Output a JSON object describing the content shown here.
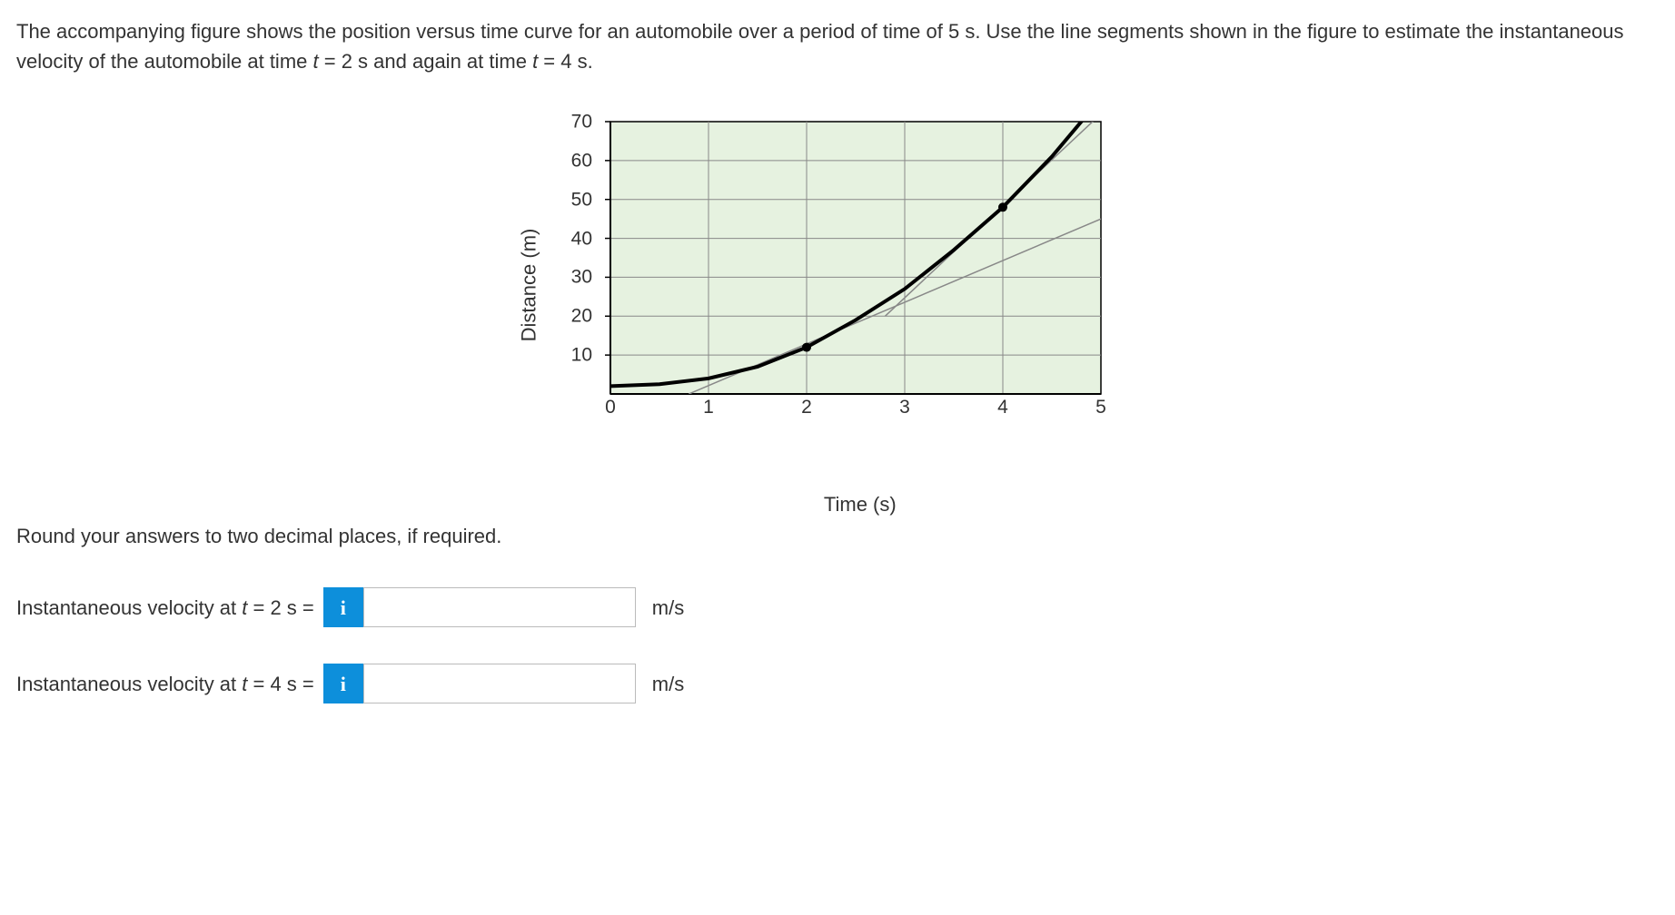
{
  "question": {
    "pre": "The accompanying figure shows the position versus time curve for an automobile over a period of time of 5 s. Use the line segments shown in the figure to estimate the instantaneous velocity of the automobile at time ",
    "t1_var": "t",
    "t1_eq": " = 2 s and again at time ",
    "t2_var": "t",
    "t2_eq": " = 4 s."
  },
  "chart": {
    "xlabel": "Time (s)",
    "ylabel": "Distance (m)",
    "xlim": [
      0,
      5
    ],
    "ylim": [
      0,
      70
    ],
    "xticks": [
      0,
      1,
      2,
      3,
      4,
      5
    ],
    "yticks": [
      10,
      20,
      30,
      40,
      50,
      60,
      70
    ],
    "bg_fill": "#e6f2e0",
    "grid_color": "#888888",
    "axis_color": "#000000",
    "curve_color": "#000000",
    "curve_width": 4,
    "curve_points": [
      [
        0,
        2
      ],
      [
        0.5,
        2.5
      ],
      [
        1,
        4
      ],
      [
        1.5,
        7
      ],
      [
        2,
        12
      ],
      [
        2.5,
        19
      ],
      [
        3,
        27
      ],
      [
        3.5,
        37
      ],
      [
        4,
        48
      ],
      [
        4.5,
        61
      ],
      [
        5,
        76
      ]
    ],
    "marker_points": [
      [
        2,
        12
      ],
      [
        4,
        48
      ]
    ],
    "marker_color": "#000000",
    "marker_radius": 5,
    "tangent_color": "#888888",
    "tangent_width": 1.5,
    "tangent1": {
      "p1": [
        0.8,
        0
      ],
      "p2": [
        5,
        45
      ]
    },
    "tangent2": {
      "p1": [
        2.8,
        20
      ],
      "p2": [
        5,
        72
      ]
    }
  },
  "instruction": "Round your answers to two decimal places, if required.",
  "answers": {
    "row1_label_pre": "Instantaneous velocity at ",
    "row1_var": "t",
    "row1_label_post": " = 2 s = ",
    "row2_label_pre": "Instantaneous velocity at ",
    "row2_var": "t",
    "row2_label_post": " = 4 s = ",
    "info_glyph": "i",
    "unit": "m/s",
    "input1_value": "",
    "input2_value": ""
  }
}
